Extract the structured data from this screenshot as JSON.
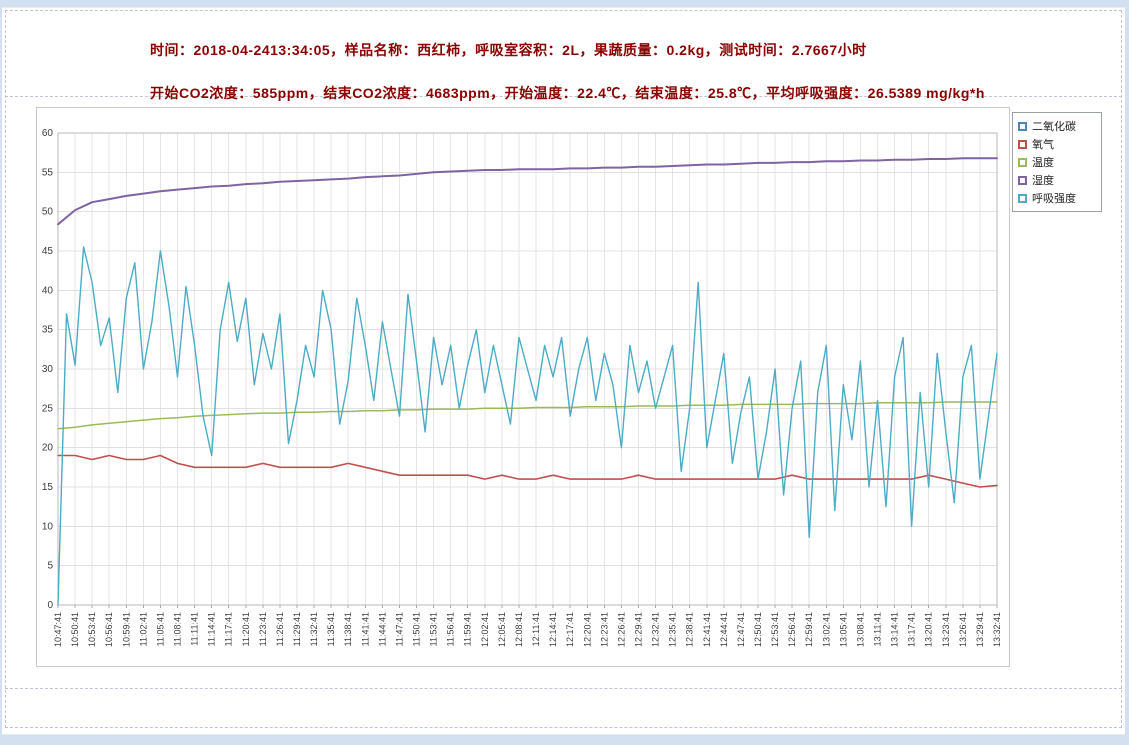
{
  "header": {
    "line1": "时间：2018-04-2413:34:05，样品名称：西红柿，呼吸室容积：2L，果蔬质量：0.2kg，测试时间：2.7667小时",
    "line2": "开始CO2浓度：585ppm，结束CO2浓度：4683ppm，开始温度：22.4℃，结束温度：25.8℃，平均呼吸强度：26.5389 mg/kg*h",
    "text_color": "#8b0000"
  },
  "chart_data": {
    "type": "line",
    "title": "",
    "xlabel": "",
    "ylabel": "",
    "ylim": [
      0,
      60
    ],
    "y_ticks": [
      0,
      5,
      10,
      15,
      20,
      25,
      30,
      35,
      40,
      45,
      50,
      55,
      60
    ],
    "grid": true,
    "legend_position": "top-right",
    "x_tick_labels": [
      "10:47:41",
      "10:50:41",
      "10:53:41",
      "10:56:41",
      "10:59:41",
      "11:02:41",
      "11:05:41",
      "11:08:41",
      "11:11:41",
      "11:14:41",
      "11:17:41",
      "11:20:41",
      "11:23:41",
      "11:26:41",
      "11:29:41",
      "11:32:41",
      "11:35:41",
      "11:38:41",
      "11:41:41",
      "11:44:41",
      "11:47:41",
      "11:50:41",
      "11:53:41",
      "11:56:41",
      "11:59:41",
      "12:02:41",
      "12:05:41",
      "12:08:41",
      "12:11:41",
      "12:14:41",
      "12:17:41",
      "12:20:41",
      "12:23:41",
      "12:26:41",
      "12:29:41",
      "12:32:41",
      "12:35:41",
      "12:38:41",
      "12:41:41",
      "12:44:41",
      "12:47:41",
      "12:50:41",
      "12:53:41",
      "12:56:41",
      "12:59:41",
      "13:02:41",
      "13:05:41",
      "13:08:41",
      "13:11:41",
      "13:14:41",
      "13:17:41",
      "13:20:41",
      "13:23:41",
      "13:26:41",
      "13:29:41",
      "13:32:41"
    ],
    "series": [
      {
        "name": "二氧化碳",
        "color": "#4f81bd",
        "plotted": false,
        "note": "585-4683 ppm, above axis range, line not visible in plot",
        "values": []
      },
      {
        "name": "氧气",
        "color": "#c0504d",
        "width": 1.6,
        "values": [
          19,
          19,
          18.5,
          19,
          18.5,
          18.5,
          19,
          18,
          17.5,
          17.5,
          17.5,
          17.5,
          18,
          17.5,
          17.5,
          17.5,
          17.5,
          18,
          17.5,
          17,
          16.5,
          16.5,
          16.5,
          16.5,
          16.5,
          16,
          16.5,
          16,
          16,
          16.5,
          16,
          16,
          16,
          16,
          16.5,
          16,
          16,
          16,
          16,
          16,
          16,
          16,
          16,
          16.5,
          16,
          16,
          16,
          16,
          16,
          16,
          16,
          16.5,
          16,
          15.5,
          15,
          15.2
        ]
      },
      {
        "name": "温度",
        "color": "#9bbb59",
        "width": 1.5,
        "values": [
          22.4,
          22.6,
          22.9,
          23.1,
          23.3,
          23.5,
          23.7,
          23.8,
          24.0,
          24.1,
          24.2,
          24.3,
          24.4,
          24.4,
          24.5,
          24.5,
          24.6,
          24.6,
          24.7,
          24.7,
          24.8,
          24.8,
          24.9,
          24.9,
          24.9,
          25.0,
          25.0,
          25.0,
          25.1,
          25.1,
          25.1,
          25.2,
          25.2,
          25.2,
          25.3,
          25.3,
          25.3,
          25.4,
          25.4,
          25.4,
          25.5,
          25.5,
          25.5,
          25.5,
          25.6,
          25.6,
          25.6,
          25.6,
          25.7,
          25.7,
          25.7,
          25.7,
          25.8,
          25.8,
          25.8,
          25.8
        ]
      },
      {
        "name": "湿度",
        "color": "#8064a2",
        "width": 2,
        "values": [
          48.4,
          50.2,
          51.2,
          51.6,
          52.0,
          52.3,
          52.6,
          52.8,
          53.0,
          53.2,
          53.3,
          53.5,
          53.6,
          53.8,
          53.9,
          54.0,
          54.1,
          54.2,
          54.4,
          54.5,
          54.6,
          54.8,
          55.0,
          55.1,
          55.2,
          55.3,
          55.3,
          55.4,
          55.4,
          55.4,
          55.5,
          55.5,
          55.6,
          55.6,
          55.7,
          55.7,
          55.8,
          55.9,
          56.0,
          56.0,
          56.1,
          56.2,
          56.2,
          56.3,
          56.3,
          56.4,
          56.4,
          56.5,
          56.5,
          56.6,
          56.6,
          56.7,
          56.7,
          56.8,
          56.8,
          56.8
        ]
      },
      {
        "name": "呼吸强度",
        "color": "#4bacc6",
        "width": 1.4,
        "values": [
          0,
          37,
          30.5,
          45.5,
          41,
          33,
          36.5,
          27,
          39,
          43.5,
          30,
          36,
          45,
          38,
          29,
          40.5,
          33,
          24,
          19,
          35,
          41,
          33.5,
          39,
          28,
          34.5,
          30,
          37,
          20.5,
          26,
          33,
          29,
          40,
          35,
          23,
          28.5,
          39,
          33,
          26,
          36,
          30,
          24,
          39.5,
          31,
          22,
          34,
          28,
          33,
          25,
          30.5,
          35,
          27,
          33,
          28,
          23,
          34,
          30,
          26,
          33,
          29,
          34,
          24,
          30,
          34,
          26,
          32,
          28,
          20,
          33,
          27,
          31,
          25,
          29,
          33,
          17,
          25,
          41,
          20,
          26,
          32,
          18,
          24.5,
          29,
          16,
          22,
          30,
          14,
          25,
          31,
          8.6,
          27,
          33,
          12,
          28,
          21,
          31,
          15,
          26,
          12.5,
          29,
          34,
          10,
          27,
          15,
          32,
          22,
          13,
          29,
          33,
          16,
          24,
          32
        ]
      }
    ]
  }
}
